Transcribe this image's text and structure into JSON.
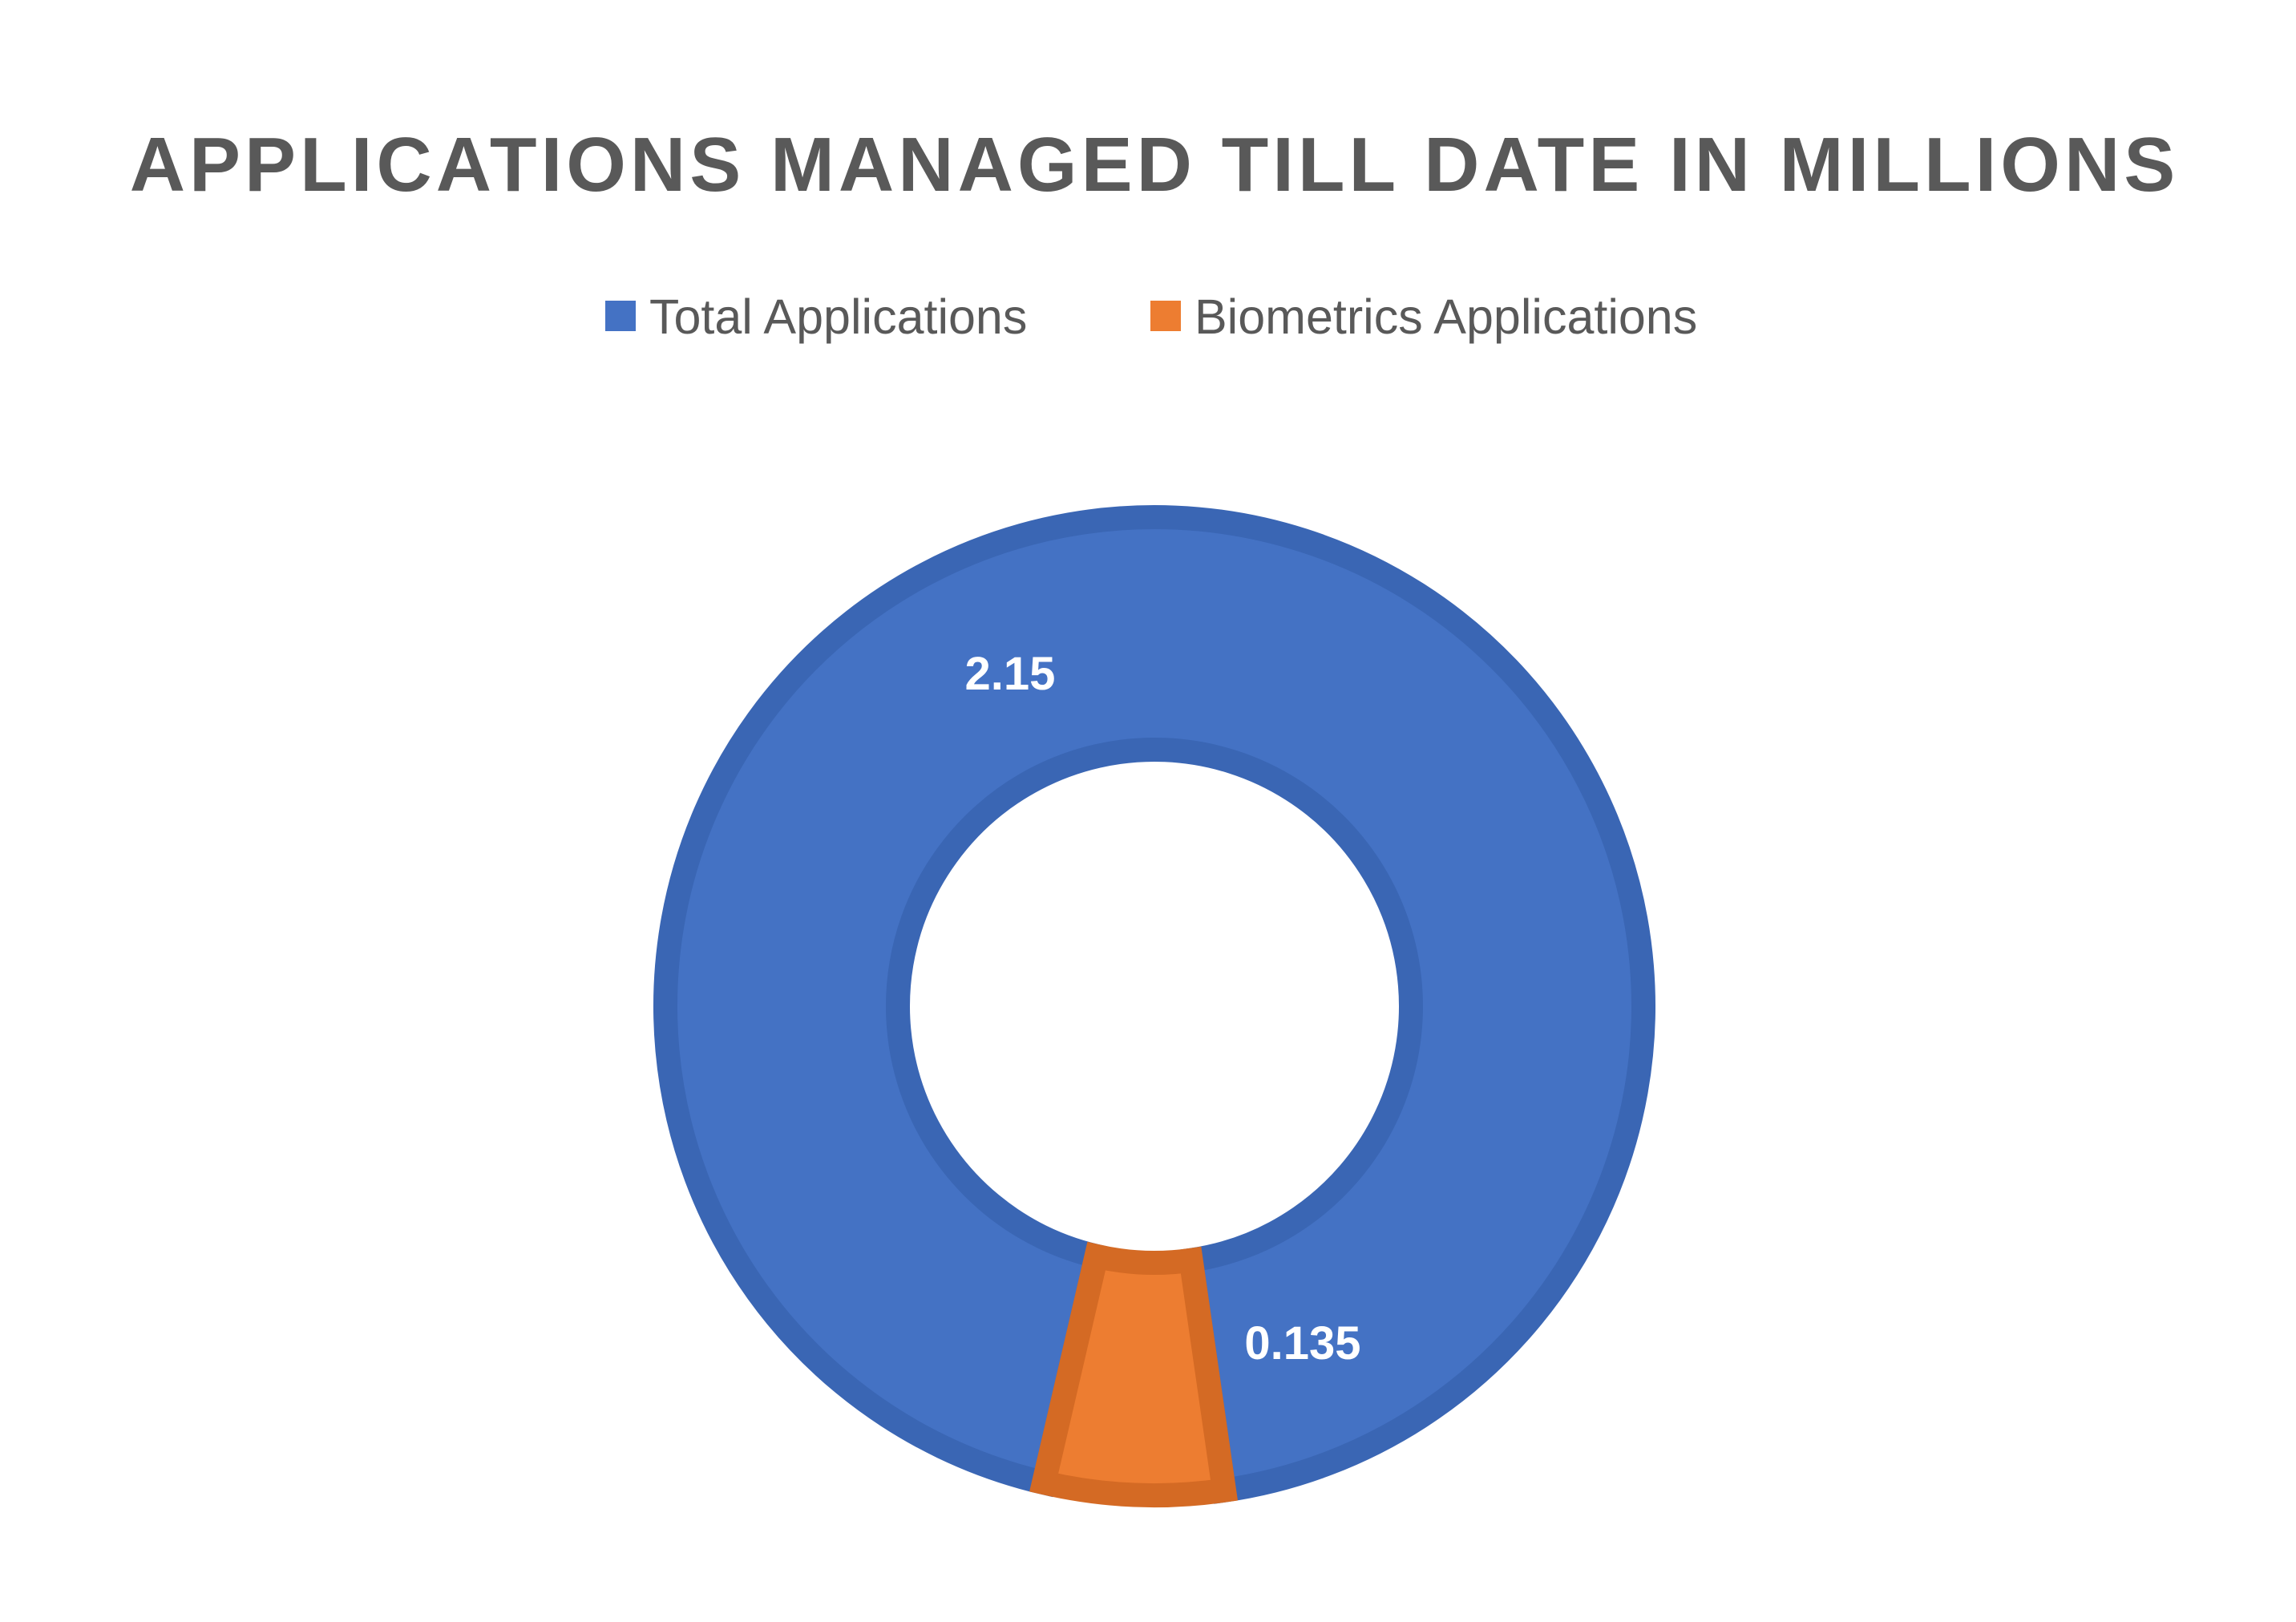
{
  "chart_data": {
    "type": "pie",
    "variant": "doughnut",
    "title": "APPLICATIONS MANAGED TILL DATE IN MILLIONS",
    "categories": [
      "Total Applications",
      "Biometrics Applications"
    ],
    "values": [
      2.15,
      0.135
    ],
    "data_labels": [
      "2.15",
      "0.135"
    ],
    "colors": [
      "#4472C4",
      "#ED7D31"
    ],
    "border_colors": [
      "#3A66B4",
      "#D46A24"
    ],
    "legend": {
      "position": "top",
      "entries": [
        "Total Applications",
        "Biometrics Applications"
      ]
    }
  }
}
